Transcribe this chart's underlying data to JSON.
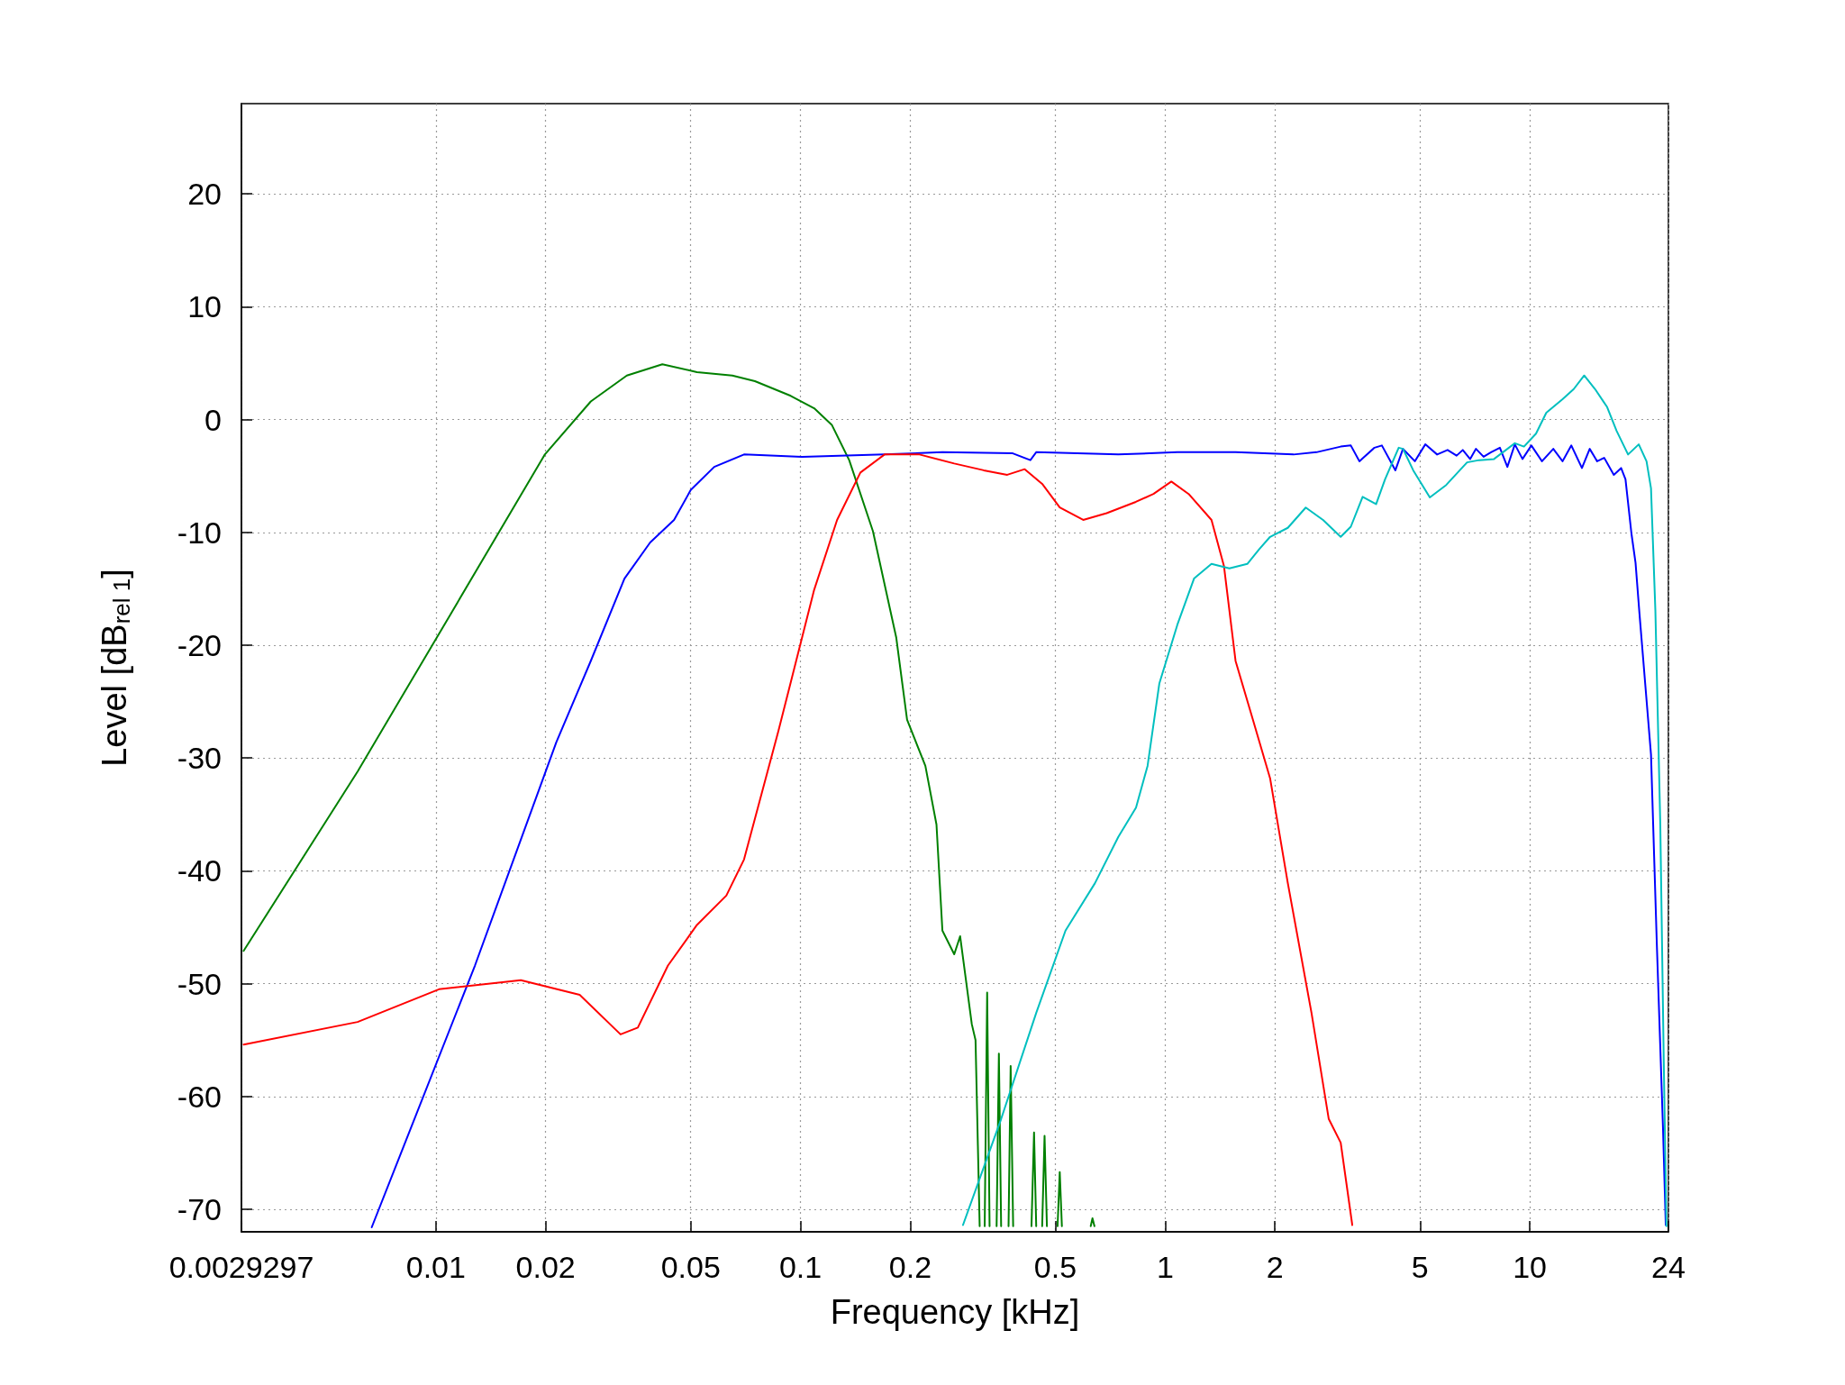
{
  "chart_data": {
    "type": "line",
    "xlabel": "Frequency [kHz]",
    "ylabel": "Level [dB$_{rel 1}$]",
    "log": "x",
    "grid": true,
    "marker": "none",
    "line_style": "solid",
    "xlim": [
      0.0029297,
      24
    ],
    "xticks": [
      0.0029297,
      0.01,
      0.02,
      0.05,
      0.1,
      0.2,
      0.5,
      1,
      2,
      5,
      10,
      24
    ],
    "ylim": [
      -72,
      28
    ],
    "yticks": [
      -70,
      -60,
      -50,
      -40,
      -30,
      -20,
      -10,
      0,
      10,
      20
    ],
    "series": [
      {
        "color": "#008000",
        "x": [
          0.00297,
          0.0061,
          0.011,
          0.0199,
          0.0266,
          0.0334,
          0.0418,
          0.052,
          0.065,
          0.075,
          0.094,
          0.109,
          0.122,
          0.136,
          0.158,
          0.183,
          0.196,
          0.22,
          0.236,
          0.245,
          0.264,
          0.274,
          0.295,
          0.302,
          0.31,
          0.317,
          0.32,
          0.325,
          0.33,
          0.34,
          0.345,
          0.35,
          0.355,
          0.365,
          0.372,
          0.377,
          0.383,
          0.41,
          0.43,
          0.437,
          0.443,
          0.45,
          0.46,
          0.467,
          0.474,
          0.49,
          0.507,
          0.514,
          0.521,
          0.6,
          0.625,
          0.632,
          0.64
        ],
        "values": [
          -47.1,
          -31.2,
          -17.2,
          -3.1,
          1.6,
          3.9,
          4.9,
          4.2,
          3.9,
          3.4,
          2.1,
          1.0,
          -0.5,
          -3.6,
          -9.9,
          -19.3,
          -26.6,
          -30.7,
          -35.9,
          -45.3,
          -47.4,
          -45.8,
          -53.6,
          -55,
          -71.5,
          null,
          -71.5,
          -50.8,
          -71.5,
          null,
          -71.5,
          -56.2,
          -71.5,
          null,
          -71.5,
          -57.3,
          -71.5,
          null,
          -71.5,
          -63.2,
          -71.5,
          null,
          -71.5,
          -63.5,
          -71.5,
          null,
          -71.5,
          -66.7,
          -71.5,
          null,
          -71.5,
          -70.8,
          -71.5
        ]
      },
      {
        "color": "#0000ff",
        "x": [
          0.00667,
          0.0128,
          0.0214,
          0.0266,
          0.0329,
          0.0387,
          0.045,
          0.05,
          0.058,
          0.07,
          0.101,
          0.17,
          0.245,
          0.382,
          0.427,
          0.443,
          0.744,
          1.08,
          1.56,
          2.25,
          2.6,
          3.03,
          3.23,
          3.41,
          3.75,
          3.93,
          4.28,
          4.49,
          4.84,
          5.17,
          5.57,
          5.95,
          6.3,
          6.55,
          6.86,
          7.12,
          7.47,
          7.83,
          8.28,
          8.68,
          9.1,
          9.55,
          10.1,
          10.8,
          11.6,
          12.3,
          13.0,
          13.9,
          14.6,
          15.3,
          16.0,
          17.0,
          17.8,
          18.3,
          19.0,
          19.5,
          20.0,
          21.5,
          22.3,
          23.2,
          23.6
        ],
        "values": [
          -71.6,
          -48.4,
          -28.6,
          -21.4,
          -14.1,
          -10.9,
          -8.9,
          -6.25,
          -4.2,
          -3.1,
          -3.3,
          -3.1,
          -2.9,
          -3.0,
          -3.6,
          -2.9,
          -3.1,
          -2.9,
          -2.9,
          -3.1,
          -2.9,
          -2.4,
          -2.3,
          -3.7,
          -2.5,
          -2.3,
          -4.5,
          -2.6,
          -3.7,
          -2.2,
          -3.1,
          -2.7,
          -3.2,
          -2.7,
          -3.5,
          -2.6,
          -3.3,
          -2.9,
          -2.5,
          -4.2,
          -2.2,
          -3.5,
          -2.3,
          -3.7,
          -2.6,
          -3.7,
          -2.3,
          -4.3,
          -2.6,
          -3.7,
          -3.4,
          -4.9,
          -4.3,
          -5.3,
          -10.1,
          -12.7,
          -17.3,
          -29.7,
          -46.4,
          -63,
          -71.4
        ]
      },
      {
        "color": "#ff0000",
        "x": [
          0.00297,
          0.0061,
          0.0102,
          0.0171,
          0.0248,
          0.0321,
          0.0358,
          0.0433,
          0.052,
          0.0626,
          0.07,
          0.087,
          0.109,
          0.126,
          0.146,
          0.17,
          0.212,
          0.264,
          0.318,
          0.369,
          0.412,
          0.46,
          0.514,
          0.596,
          0.691,
          0.831,
          0.929,
          1.04,
          1.16,
          1.34,
          1.45,
          1.56,
          1.74,
          1.94,
          2.17,
          2.52,
          2.81,
          3.03,
          3.26
        ],
        "values": [
          -55.4,
          -53.4,
          -50.5,
          -49.7,
          -51,
          -54.5,
          -53.9,
          -48.4,
          -44.8,
          -42.2,
          -39,
          -27.6,
          -15.1,
          -8.9,
          -4.7,
          -3.1,
          -3.1,
          -3.9,
          -4.5,
          -4.9,
          -4.4,
          -5.7,
          -7.8,
          -8.9,
          -8.3,
          -7.3,
          -6.6,
          -5.5,
          -6.6,
          -8.9,
          -13,
          -21.4,
          -26.6,
          -31.8,
          -41.1,
          -52.6,
          -62,
          -64.1,
          -71.4
        ]
      },
      {
        "color": "#00bfbf",
        "x": [
          0.279,
          0.355,
          0.443,
          0.533,
          0.642,
          0.744,
          0.832,
          0.895,
          0.964,
          1.08,
          1.2,
          1.34,
          1.5,
          1.68,
          1.81,
          1.94,
          2.17,
          2.43,
          2.71,
          3.03,
          3.23,
          3.48,
          3.79,
          4.01,
          4.37,
          4.49,
          4.79,
          5.32,
          5.9,
          6.73,
          7.26,
          7.98,
          9.1,
          9.64,
          10.4,
          11.1,
          12.3,
          13.2,
          14.1,
          15.1,
          16.3,
          17.3,
          18.6,
          19.9,
          20.9,
          21.5,
          22.1,
          22.8,
          23.3,
          23.7
        ],
        "values": [
          -71.4,
          -62,
          -52.6,
          -45.3,
          -41.1,
          -37,
          -34.4,
          -30.7,
          -23.4,
          -18.2,
          -14.1,
          -12.8,
          -13.2,
          -12.8,
          -11.5,
          -10.4,
          -9.6,
          -7.8,
          -8.9,
          -10.4,
          -9.5,
          -6.85,
          -7.5,
          -5.3,
          -2.5,
          -2.6,
          -4.5,
          -6.9,
          -5.8,
          -3.8,
          -3.6,
          -3.5,
          -2.1,
          -2.4,
          -1.25,
          0.6,
          1.8,
          2.7,
          3.9,
          2.7,
          1.1,
          -1.0,
          -3.1,
          -2.2,
          -3.7,
          -6.1,
          -16.9,
          -36,
          -56.8,
          -71.5
        ]
      }
    ]
  }
}
